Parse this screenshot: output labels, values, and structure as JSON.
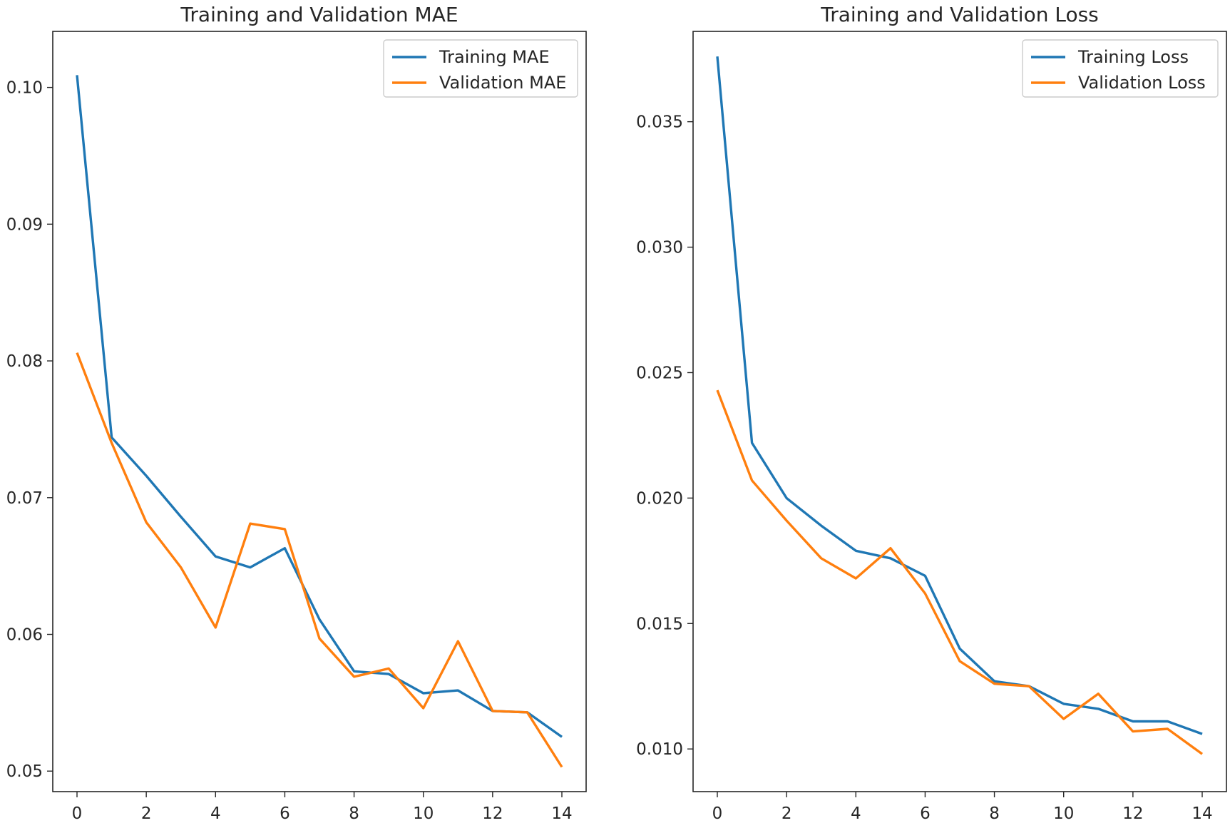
{
  "chart_data": [
    {
      "type": "line",
      "title": "Training and Validation MAE",
      "xlabel": "",
      "ylabel": "",
      "xlim": [
        -0.7,
        14.7
      ],
      "ylim": [
        0.0485,
        0.1041
      ],
      "xticks": [
        0,
        2,
        4,
        6,
        8,
        10,
        12,
        14
      ],
      "xtick_labels": [
        "0",
        "2",
        "4",
        "6",
        "8",
        "10",
        "12",
        "14"
      ],
      "yticks": [
        0.05,
        0.06,
        0.07,
        0.08,
        0.09,
        0.1
      ],
      "ytick_labels": [
        "0.05",
        "0.06",
        "0.07",
        "0.08",
        "0.09",
        "0.10"
      ],
      "grid": false,
      "legend": "top-right",
      "x": [
        0,
        1,
        2,
        3,
        4,
        5,
        6,
        7,
        8,
        9,
        10,
        11,
        12,
        13,
        14
      ],
      "series": [
        {
          "name": "Training MAE",
          "color": "#1f77b4",
          "values": [
            0.1009,
            0.0744,
            0.0716,
            0.0686,
            0.0657,
            0.0649,
            0.0663,
            0.0611,
            0.0573,
            0.0571,
            0.0557,
            0.0559,
            0.0544,
            0.0543,
            0.0525
          ]
        },
        {
          "name": "Validation MAE",
          "color": "#ff7f0e",
          "values": [
            0.0806,
            0.074,
            0.0682,
            0.0649,
            0.0605,
            0.0681,
            0.0677,
            0.0597,
            0.0569,
            0.0575,
            0.0546,
            0.0595,
            0.0544,
            0.0543,
            0.0503
          ]
        }
      ]
    },
    {
      "type": "line",
      "title": "Training and Validation Loss",
      "xlabel": "",
      "ylabel": "",
      "xlim": [
        -0.7,
        14.7
      ],
      "ylim": [
        0.0083,
        0.0386
      ],
      "xticks": [
        0,
        2,
        4,
        6,
        8,
        10,
        12,
        14
      ],
      "xtick_labels": [
        "0",
        "2",
        "4",
        "6",
        "8",
        "10",
        "12",
        "14"
      ],
      "yticks": [
        0.01,
        0.015,
        0.02,
        0.025,
        0.03,
        0.035
      ],
      "ytick_labels": [
        "0.010",
        "0.015",
        "0.020",
        "0.025",
        "0.030",
        "0.035"
      ],
      "grid": false,
      "legend": "top-right",
      "x": [
        0,
        1,
        2,
        3,
        4,
        5,
        6,
        7,
        8,
        9,
        10,
        11,
        12,
        13,
        14
      ],
      "series": [
        {
          "name": "Training Loss",
          "color": "#1f77b4",
          "values": [
            0.0376,
            0.0222,
            0.02,
            0.0189,
            0.0179,
            0.0176,
            0.0169,
            0.014,
            0.0127,
            0.0125,
            0.0118,
            0.0116,
            0.0111,
            0.0111,
            0.0106
          ]
        },
        {
          "name": "Validation Loss",
          "color": "#ff7f0e",
          "values": [
            0.0243,
            0.0207,
            0.0191,
            0.0176,
            0.0168,
            0.018,
            0.0162,
            0.0135,
            0.0126,
            0.0125,
            0.0112,
            0.0122,
            0.0107,
            0.0108,
            0.0098
          ]
        }
      ]
    }
  ]
}
